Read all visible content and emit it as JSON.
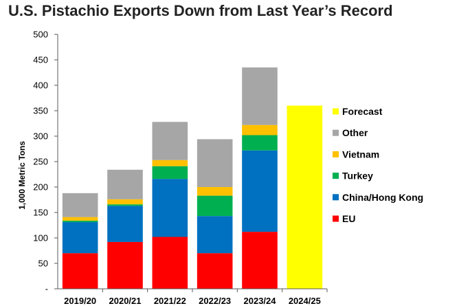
{
  "chart_data": {
    "type": "bar",
    "stacked": true,
    "title": "U.S. Pistachio Exports Down from Last Year’s Record",
    "ylabel": "1,000 Metric Tons",
    "xlabel": "",
    "ylim": [
      0,
      500
    ],
    "yticks": [
      0,
      50,
      100,
      150,
      200,
      250,
      300,
      350,
      400,
      450,
      500
    ],
    "ytick_labels": [
      "-",
      "50",
      "100",
      "150",
      "200",
      "250",
      "300",
      "350",
      "400",
      "450",
      "500"
    ],
    "grid": false,
    "legend_position": "right",
    "categories": [
      "2019/20",
      "2020/21",
      "2021/22",
      "2022/23",
      "2023/24",
      "2024/25"
    ],
    "series": [
      {
        "name": "EU",
        "color": "#ff0000",
        "values": [
          70,
          92,
          102,
          70,
          112,
          0
        ]
      },
      {
        "name": "China/Hong Kong",
        "color": "#0070c0",
        "values": [
          61,
          71,
          114,
          73,
          160,
          0
        ]
      },
      {
        "name": "Turkey",
        "color": "#00b050",
        "values": [
          3,
          3,
          25,
          40,
          30,
          0
        ]
      },
      {
        "name": "Vietnam",
        "color": "#ffc000",
        "values": [
          7,
          10,
          12,
          17,
          20,
          0
        ]
      },
      {
        "name": "Other",
        "color": "#a6a6a6",
        "values": [
          47,
          58,
          75,
          94,
          113,
          0
        ]
      },
      {
        "name": "Forecast",
        "color": "#ffff00",
        "values": [
          0,
          0,
          0,
          0,
          0,
          360
        ]
      }
    ],
    "legend_order": [
      "Forecast",
      "Other",
      "Vietnam",
      "Turkey",
      "China/Hong Kong",
      "EU"
    ]
  }
}
